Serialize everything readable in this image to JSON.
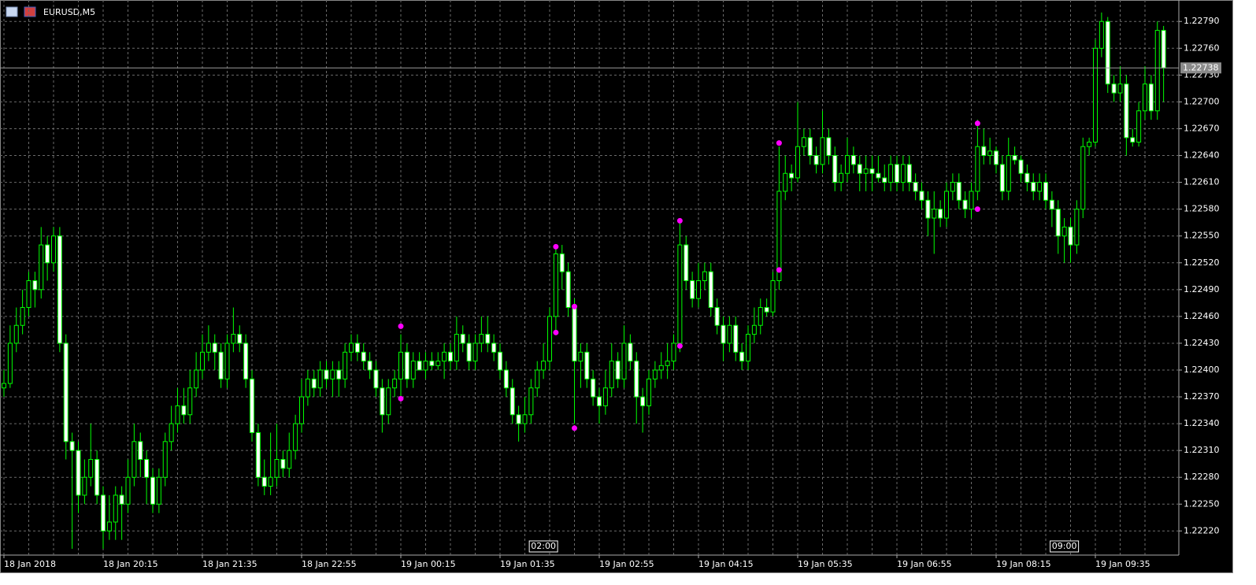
{
  "chart_data": {
    "type": "candlestick",
    "title": "EURUSD,M5",
    "bull_color": "#000000",
    "bear_color": "#ffffff",
    "wick_color": "#00ff00",
    "marker_color": "#ff00ff",
    "grid": true,
    "ylim": [
      1.22193,
      1.22814
    ],
    "yticks": [
      {
        "value": 1.2279,
        "label": "1.22790"
      },
      {
        "value": 1.2276,
        "label": "1.22760"
      },
      {
        "value": 1.2273,
        "label": "1.22730"
      },
      {
        "value": 1.227,
        "label": "1.22700"
      },
      {
        "value": 1.2267,
        "label": "1.22670"
      },
      {
        "value": 1.2264,
        "label": "1.22640"
      },
      {
        "value": 1.2261,
        "label": "1.22610"
      },
      {
        "value": 1.2258,
        "label": "1.22580"
      },
      {
        "value": 1.2255,
        "label": "1.22550"
      },
      {
        "value": 1.2252,
        "label": "1.22520"
      },
      {
        "value": 1.2249,
        "label": "1.22490"
      },
      {
        "value": 1.2246,
        "label": "1.22460"
      },
      {
        "value": 1.2243,
        "label": "1.22430"
      },
      {
        "value": 1.224,
        "label": "1.22400"
      },
      {
        "value": 1.2237,
        "label": "1.22370"
      },
      {
        "value": 1.2234,
        "label": "1.22340"
      },
      {
        "value": 1.2231,
        "label": "1.22310"
      },
      {
        "value": 1.2228,
        "label": "1.22280"
      },
      {
        "value": 1.2225,
        "label": "1.22250"
      },
      {
        "value": 1.2222,
        "label": "1.22220"
      }
    ],
    "xtick_labels": [
      "18 Jan 2018",
      "18 Jan 20:15",
      "18 Jan 21:35",
      "18 Jan 22:55",
      "19 Jan 00:15",
      "19 Jan 01:35",
      "19 Jan 02:55",
      "19 Jan 04:15",
      "19 Jan 05:35",
      "19 Jan 06:55",
      "19 Jan 08:15",
      "19 Jan 09:35"
    ],
    "current_price": 1.22738,
    "time_markers": [
      {
        "index": 87,
        "label": "02:00"
      },
      {
        "index": 171,
        "label": "09:00"
      }
    ],
    "markers": [
      {
        "index": 64,
        "value": 1.22449
      },
      {
        "index": 64,
        "value": 1.22368
      },
      {
        "index": 89,
        "value": 1.22538
      },
      {
        "index": 89,
        "value": 1.22442
      },
      {
        "index": 92,
        "value": 1.22471
      },
      {
        "index": 92,
        "value": 1.22335
      },
      {
        "index": 109,
        "value": 1.22567
      },
      {
        "index": 109,
        "value": 1.22427
      },
      {
        "index": 125,
        "value": 1.22654
      },
      {
        "index": 125,
        "value": 1.22512
      },
      {
        "index": 157,
        "value": 1.22676
      },
      {
        "index": 157,
        "value": 1.2258
      }
    ],
    "ohlc": [
      [
        1.2238,
        1.224,
        1.2237,
        1.22385
      ],
      [
        1.22385,
        1.2245,
        1.2238,
        1.2243
      ],
      [
        1.2243,
        1.2247,
        1.2242,
        1.2245
      ],
      [
        1.2245,
        1.2249,
        1.2244,
        1.2247
      ],
      [
        1.2247,
        1.2251,
        1.2246,
        1.225
      ],
      [
        1.225,
        1.2251,
        1.2247,
        1.2249
      ],
      [
        1.2249,
        1.2256,
        1.2248,
        1.2254
      ],
      [
        1.2254,
        1.2255,
        1.225,
        1.2252
      ],
      [
        1.2252,
        1.2256,
        1.2251,
        1.2255
      ],
      [
        1.2255,
        1.2256,
        1.2242,
        1.2243
      ],
      [
        1.2243,
        1.2244,
        1.223,
        1.2232
      ],
      [
        1.2232,
        1.2233,
        1.222,
        1.2231
      ],
      [
        1.2231,
        1.2232,
        1.2224,
        1.2226
      ],
      [
        1.2226,
        1.223,
        1.2225,
        1.2228
      ],
      [
        1.2228,
        1.2234,
        1.2227,
        1.223
      ],
      [
        1.223,
        1.2231,
        1.2225,
        1.2226
      ],
      [
        1.2226,
        1.2227,
        1.222,
        1.2222
      ],
      [
        1.2222,
        1.2226,
        1.2221,
        1.2223
      ],
      [
        1.2223,
        1.2227,
        1.2221,
        1.2226
      ],
      [
        1.2226,
        1.2227,
        1.2221,
        1.2225
      ],
      [
        1.2225,
        1.223,
        1.2224,
        1.2228
      ],
      [
        1.2228,
        1.2234,
        1.2227,
        1.2232
      ],
      [
        1.2232,
        1.2233,
        1.2228,
        1.223
      ],
      [
        1.223,
        1.2231,
        1.2225,
        1.2228
      ],
      [
        1.2228,
        1.2229,
        1.2224,
        1.2225
      ],
      [
        1.2225,
        1.2229,
        1.2224,
        1.2228
      ],
      [
        1.2228,
        1.2233,
        1.2227,
        1.2232
      ],
      [
        1.2232,
        1.2236,
        1.2231,
        1.2234
      ],
      [
        1.2234,
        1.2238,
        1.2233,
        1.2236
      ],
      [
        1.2236,
        1.2238,
        1.2234,
        1.2235
      ],
      [
        1.2235,
        1.224,
        1.2234,
        1.2238
      ],
      [
        1.2238,
        1.2242,
        1.2237,
        1.224
      ],
      [
        1.224,
        1.2244,
        1.2239,
        1.2242
      ],
      [
        1.2242,
        1.2245,
        1.2241,
        1.2243
      ],
      [
        1.2243,
        1.2244,
        1.224,
        1.2242
      ],
      [
        1.2242,
        1.2243,
        1.2238,
        1.2239
      ],
      [
        1.2239,
        1.2244,
        1.2238,
        1.2243
      ],
      [
        1.2243,
        1.2247,
        1.2242,
        1.2244
      ],
      [
        1.2244,
        1.2245,
        1.2242,
        1.2243
      ],
      [
        1.2243,
        1.2244,
        1.2238,
        1.2239
      ],
      [
        1.2239,
        1.224,
        1.2232,
        1.2233
      ],
      [
        1.2233,
        1.2234,
        1.2227,
        1.2228
      ],
      [
        1.2228,
        1.223,
        1.2226,
        1.2227
      ],
      [
        1.2227,
        1.2233,
        1.2226,
        1.2228
      ],
      [
        1.2228,
        1.2234,
        1.2227,
        1.223
      ],
      [
        1.223,
        1.2231,
        1.2228,
        1.2229
      ],
      [
        1.2229,
        1.2233,
        1.2228,
        1.2231
      ],
      [
        1.2231,
        1.2235,
        1.223,
        1.2234
      ],
      [
        1.2234,
        1.2239,
        1.2233,
        1.2237
      ],
      [
        1.2237,
        1.224,
        1.2236,
        1.2239
      ],
      [
        1.2239,
        1.224,
        1.2237,
        1.2238
      ],
      [
        1.2238,
        1.2241,
        1.2237,
        1.224
      ],
      [
        1.224,
        1.2241,
        1.2238,
        1.2239
      ],
      [
        1.2239,
        1.2241,
        1.2237,
        1.224
      ],
      [
        1.224,
        1.2241,
        1.2237,
        1.2239
      ],
      [
        1.2239,
        1.2243,
        1.2238,
        1.2242
      ],
      [
        1.2242,
        1.2244,
        1.2241,
        1.2243
      ],
      [
        1.2243,
        1.2244,
        1.2241,
        1.2242
      ],
      [
        1.2242,
        1.2243,
        1.224,
        1.2241
      ],
      [
        1.2241,
        1.2242,
        1.2239,
        1.224
      ],
      [
        1.224,
        1.2241,
        1.2237,
        1.2238
      ],
      [
        1.2238,
        1.2239,
        1.2233,
        1.2235
      ],
      [
        1.2235,
        1.2239,
        1.2234,
        1.2238
      ],
      [
        1.2238,
        1.224,
        1.2237,
        1.2239
      ],
      [
        1.2239,
        1.2244,
        1.2237,
        1.2242
      ],
      [
        1.2242,
        1.2243,
        1.2238,
        1.2239
      ],
      [
        1.2239,
        1.2242,
        1.2238,
        1.2241
      ],
      [
        1.2241,
        1.2242,
        1.224,
        1.224
      ],
      [
        1.224,
        1.2242,
        1.2239,
        1.2241
      ],
      [
        1.2241,
        1.2242,
        1.224,
        1.22405
      ],
      [
        1.22405,
        1.2242,
        1.224,
        1.2241
      ],
      [
        1.2241,
        1.2243,
        1.2239,
        1.2242
      ],
      [
        1.2242,
        1.2243,
        1.224,
        1.2241
      ],
      [
        1.2241,
        1.2246,
        1.224,
        1.2244
      ],
      [
        1.2244,
        1.2245,
        1.2242,
        1.2243
      ],
      [
        1.2243,
        1.2244,
        1.224,
        1.2241
      ],
      [
        1.2241,
        1.2244,
        1.224,
        1.2243
      ],
      [
        1.2243,
        1.2246,
        1.2242,
        1.2244
      ],
      [
        1.2244,
        1.2246,
        1.2242,
        1.2243
      ],
      [
        1.2243,
        1.2244,
        1.2241,
        1.2242
      ],
      [
        1.2242,
        1.2243,
        1.2239,
        1.224
      ],
      [
        1.224,
        1.2241,
        1.2237,
        1.2238
      ],
      [
        1.2238,
        1.2239,
        1.2234,
        1.2235
      ],
      [
        1.2235,
        1.2236,
        1.2232,
        1.2234
      ],
      [
        1.2234,
        1.2237,
        1.2233,
        1.2235
      ],
      [
        1.2235,
        1.2239,
        1.2234,
        1.2238
      ],
      [
        1.2238,
        1.2241,
        1.2237,
        1.224
      ],
      [
        1.224,
        1.2243,
        1.2239,
        1.2241
      ],
      [
        1.2241,
        1.2247,
        1.224,
        1.2246
      ],
      [
        1.2246,
        1.2254,
        1.2244,
        1.2253
      ],
      [
        1.2253,
        1.2254,
        1.2249,
        1.2251
      ],
      [
        1.2251,
        1.2252,
        1.2246,
        1.2247
      ],
      [
        1.2247,
        1.2248,
        1.2234,
        1.2241
      ],
      [
        1.2241,
        1.2243,
        1.2238,
        1.2242
      ],
      [
        1.2242,
        1.2243,
        1.2238,
        1.2239
      ],
      [
        1.2239,
        1.224,
        1.2236,
        1.2237
      ],
      [
        1.2237,
        1.2238,
        1.2234,
        1.2236
      ],
      [
        1.2236,
        1.224,
        1.2235,
        1.2238
      ],
      [
        1.2238,
        1.2243,
        1.2237,
        1.2241
      ],
      [
        1.2241,
        1.2242,
        1.2238,
        1.2239
      ],
      [
        1.2239,
        1.2245,
        1.2238,
        1.2243
      ],
      [
        1.2243,
        1.2244,
        1.224,
        1.2241
      ],
      [
        1.2241,
        1.2242,
        1.2234,
        1.2237
      ],
      [
        1.2237,
        1.2238,
        1.2233,
        1.2236
      ],
      [
        1.2236,
        1.224,
        1.2235,
        1.2239
      ],
      [
        1.2239,
        1.2241,
        1.2238,
        1.224
      ],
      [
        1.224,
        1.2242,
        1.2239,
        1.22405
      ],
      [
        1.22405,
        1.2243,
        1.2239,
        1.2241
      ],
      [
        1.2241,
        1.2244,
        1.224,
        1.2243
      ],
      [
        1.2243,
        1.2257,
        1.2242,
        1.2254
      ],
      [
        1.2254,
        1.2255,
        1.2249,
        1.225
      ],
      [
        1.225,
        1.2251,
        1.2247,
        1.2248
      ],
      [
        1.2248,
        1.2252,
        1.2247,
        1.225
      ],
      [
        1.225,
        1.2252,
        1.2249,
        1.2251
      ],
      [
        1.2251,
        1.2252,
        1.2246,
        1.2247
      ],
      [
        1.2247,
        1.2248,
        1.2244,
        1.2245
      ],
      [
        1.2245,
        1.2246,
        1.2241,
        1.2243
      ],
      [
        1.2243,
        1.2246,
        1.2242,
        1.2245
      ],
      [
        1.2245,
        1.2246,
        1.2241,
        1.2242
      ],
      [
        1.2242,
        1.2243,
        1.224,
        1.2241
      ],
      [
        1.2241,
        1.2245,
        1.224,
        1.2244
      ],
      [
        1.2244,
        1.2247,
        1.2243,
        1.2245
      ],
      [
        1.2245,
        1.2248,
        1.2244,
        1.2247
      ],
      [
        1.2247,
        1.2248,
        1.2246,
        1.22465
      ],
      [
        1.22465,
        1.2251,
        1.2246,
        1.225
      ],
      [
        1.225,
        1.2265,
        1.2249,
        1.226
      ],
      [
        1.226,
        1.2264,
        1.2259,
        1.2262
      ],
      [
        1.2262,
        1.2263,
        1.226,
        1.22615
      ],
      [
        1.22615,
        1.227,
        1.2261,
        1.2265
      ],
      [
        1.2265,
        1.2267,
        1.2264,
        1.2266
      ],
      [
        1.2266,
        1.2267,
        1.2263,
        1.2264
      ],
      [
        1.2264,
        1.2265,
        1.2262,
        1.2263
      ],
      [
        1.2263,
        1.2269,
        1.2262,
        1.2266
      ],
      [
        1.2266,
        1.2267,
        1.2263,
        1.2264
      ],
      [
        1.2264,
        1.2265,
        1.226,
        1.2261
      ],
      [
        1.2261,
        1.2263,
        1.226,
        1.2262
      ],
      [
        1.2262,
        1.2266,
        1.2261,
        1.2264
      ],
      [
        1.2264,
        1.2265,
        1.2262,
        1.2263
      ],
      [
        1.2263,
        1.2264,
        1.226,
        1.2262
      ],
      [
        1.2262,
        1.2264,
        1.226,
        1.22625
      ],
      [
        1.22625,
        1.2264,
        1.226,
        1.2262
      ],
      [
        1.2262,
        1.2264,
        1.2261,
        1.22615
      ],
      [
        1.22615,
        1.2263,
        1.226,
        1.2261
      ],
      [
        1.2261,
        1.2264,
        1.226,
        1.2263
      ],
      [
        1.2263,
        1.2264,
        1.226,
        1.2261
      ],
      [
        1.2261,
        1.2264,
        1.226,
        1.2263
      ],
      [
        1.2263,
        1.2264,
        1.226,
        1.2261
      ],
      [
        1.2261,
        1.2262,
        1.2259,
        1.226
      ],
      [
        1.226,
        1.2261,
        1.2258,
        1.2259
      ],
      [
        1.2259,
        1.226,
        1.2255,
        1.2257
      ],
      [
        1.2257,
        1.226,
        1.2253,
        1.2258
      ],
      [
        1.2258,
        1.2259,
        1.2256,
        1.2257
      ],
      [
        1.2257,
        1.2261,
        1.2256,
        1.226
      ],
      [
        1.226,
        1.2262,
        1.2259,
        1.2261
      ],
      [
        1.2261,
        1.2262,
        1.2258,
        1.2259
      ],
      [
        1.2259,
        1.226,
        1.2257,
        1.2258
      ],
      [
        1.2258,
        1.2261,
        1.2257,
        1.226
      ],
      [
        1.226,
        1.2268,
        1.2259,
        1.2265
      ],
      [
        1.2265,
        1.2267,
        1.2263,
        1.2264
      ],
      [
        1.2264,
        1.2266,
        1.2263,
        1.22645
      ],
      [
        1.22645,
        1.2265,
        1.2262,
        1.2263
      ],
      [
        1.2263,
        1.2264,
        1.2259,
        1.226
      ],
      [
        1.226,
        1.2266,
        1.2259,
        1.2264
      ],
      [
        1.2264,
        1.2265,
        1.2263,
        1.22635
      ],
      [
        1.22635,
        1.2264,
        1.2261,
        1.2262
      ],
      [
        1.2262,
        1.2263,
        1.226,
        1.2261
      ],
      [
        1.2261,
        1.2262,
        1.2259,
        1.226
      ],
      [
        1.226,
        1.2262,
        1.2259,
        1.2261
      ],
      [
        1.2261,
        1.2262,
        1.2258,
        1.2259
      ],
      [
        1.2259,
        1.226,
        1.2256,
        1.2258
      ],
      [
        1.2258,
        1.2259,
        1.2253,
        1.2255
      ],
      [
        1.2255,
        1.2257,
        1.2252,
        1.2256
      ],
      [
        1.2256,
        1.2257,
        1.2252,
        1.2254
      ],
      [
        1.2254,
        1.2259,
        1.2253,
        1.2258
      ],
      [
        1.2258,
        1.2266,
        1.2257,
        1.2265
      ],
      [
        1.2265,
        1.2266,
        1.2264,
        1.22655
      ],
      [
        1.22655,
        1.2277,
        1.2265,
        1.2276
      ],
      [
        1.2276,
        1.228,
        1.2275,
        1.2279
      ],
      [
        1.2279,
        1.22795,
        1.2271,
        1.2272
      ],
      [
        1.2272,
        1.2273,
        1.227,
        1.2271
      ],
      [
        1.2271,
        1.2274,
        1.227,
        1.2272
      ],
      [
        1.2272,
        1.2273,
        1.2264,
        1.2266
      ],
      [
        1.2266,
        1.2267,
        1.2265,
        1.22655
      ],
      [
        1.22655,
        1.227,
        1.2265,
        1.2269
      ],
      [
        1.2269,
        1.2274,
        1.2268,
        1.2272
      ],
      [
        1.2272,
        1.2273,
        1.2268,
        1.2269
      ],
      [
        1.2269,
        1.2279,
        1.2268,
        1.2278
      ],
      [
        1.2278,
        1.22785,
        1.227,
        1.22738
      ]
    ]
  }
}
